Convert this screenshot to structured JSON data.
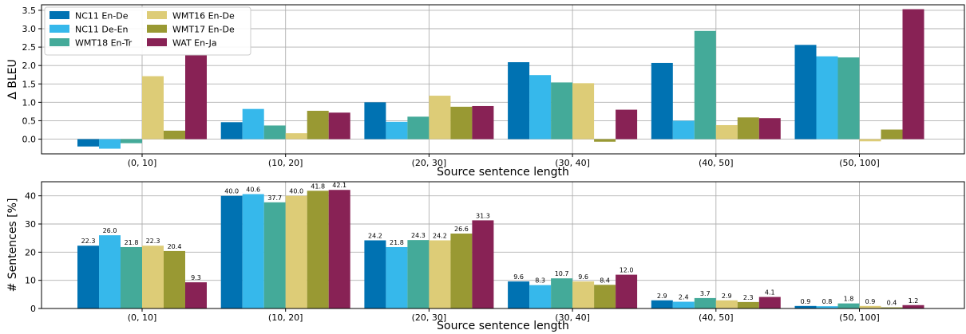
{
  "series_names": [
    "NC11 En-De",
    "NC11 De-En",
    "WMT18 En-Tr",
    "WMT16 En-De",
    "WMT17 En-De",
    "WAT En-Ja"
  ],
  "series_colors": [
    "#0072b2",
    "#36b8eb",
    "#44aa99",
    "#ddcc77",
    "#999933",
    "#882255"
  ],
  "chart_data": [
    {
      "type": "bar",
      "xlabel": "Source sentence length",
      "ylabel": "Δ BLEU",
      "ylim": [
        -0.4,
        3.65
      ],
      "yticks": [
        0.0,
        0.5,
        1.0,
        1.5,
        2.0,
        2.5,
        3.0,
        3.5
      ],
      "ytick_labels": [
        "0.0",
        "0.5",
        "1.0",
        "1.5",
        "2.0",
        "2.5",
        "3.0",
        "3.5"
      ],
      "grid": true,
      "legend": "top-left",
      "categories": [
        "(0, 10]",
        "(10, 20]",
        "(20, 30]",
        "(30, 40]",
        "(40, 50]",
        "(50, 100]"
      ],
      "series": [
        {
          "name": "NC11 En-De",
          "values": [
            -0.2,
            0.46,
            1.0,
            2.09,
            2.07,
            2.56
          ]
        },
        {
          "name": "NC11 De-En",
          "values": [
            -0.26,
            0.82,
            0.47,
            1.74,
            0.5,
            2.25
          ]
        },
        {
          "name": "WMT18 En-Tr",
          "values": [
            -0.11,
            0.37,
            0.61,
            1.54,
            2.94,
            2.22
          ]
        },
        {
          "name": "WMT16 En-De",
          "values": [
            1.71,
            0.16,
            1.18,
            1.52,
            0.38,
            -0.06
          ]
        },
        {
          "name": "WMT17 En-De",
          "values": [
            0.23,
            0.77,
            0.88,
            -0.07,
            0.59,
            0.26
          ]
        },
        {
          "name": "WAT En-Ja",
          "values": [
            2.28,
            0.72,
            0.9,
            0.8,
            0.57,
            3.53
          ]
        }
      ]
    },
    {
      "type": "bar",
      "xlabel": "Source sentence length",
      "ylabel": "# Sentences [%]",
      "ylim": [
        0,
        45
      ],
      "yticks": [
        0,
        10,
        20,
        30,
        40
      ],
      "ytick_labels": [
        "0",
        "10",
        "20",
        "30",
        "40"
      ],
      "grid": true,
      "categories": [
        "(0, 10]",
        "(10, 20]",
        "(20, 30]",
        "(30, 40]",
        "(40, 50]",
        "(50, 100]"
      ],
      "series": [
        {
          "name": "NC11 En-De",
          "values": [
            22.3,
            40.0,
            24.2,
            9.6,
            2.9,
            0.9
          ]
        },
        {
          "name": "NC11 De-En",
          "values": [
            26.0,
            40.6,
            21.8,
            8.3,
            2.4,
            0.8
          ]
        },
        {
          "name": "WMT18 En-Tr",
          "values": [
            21.8,
            37.7,
            24.3,
            10.7,
            3.7,
            1.8
          ]
        },
        {
          "name": "WMT16 En-De",
          "values": [
            22.3,
            40.0,
            24.2,
            9.6,
            2.9,
            0.9
          ]
        },
        {
          "name": "WMT17 En-De",
          "values": [
            20.4,
            41.8,
            26.6,
            8.4,
            2.3,
            0.4
          ]
        },
        {
          "name": "WAT En-Ja",
          "values": [
            9.3,
            42.1,
            31.3,
            12.0,
            4.1,
            1.2
          ]
        }
      ],
      "value_labels": [
        [
          "22.3",
          "40.0",
          "24.2",
          "9.6",
          "2.9",
          "0.9"
        ],
        [
          "26.0",
          "40.6",
          "21.8",
          "8.3",
          "2.4",
          "0.8"
        ],
        [
          "21.8",
          "37.7",
          "24.3",
          "10.7",
          "3.7",
          "1.8"
        ],
        [
          "22.3",
          "40.0",
          "24.2",
          "9.6",
          "2.9",
          "0.9"
        ],
        [
          "20.4",
          "41.8",
          "26.6",
          "8.4",
          "2.3",
          "0.4"
        ],
        [
          "9.3",
          "42.1",
          "31.3",
          "12.0",
          "4.1",
          "1.2"
        ]
      ]
    }
  ]
}
